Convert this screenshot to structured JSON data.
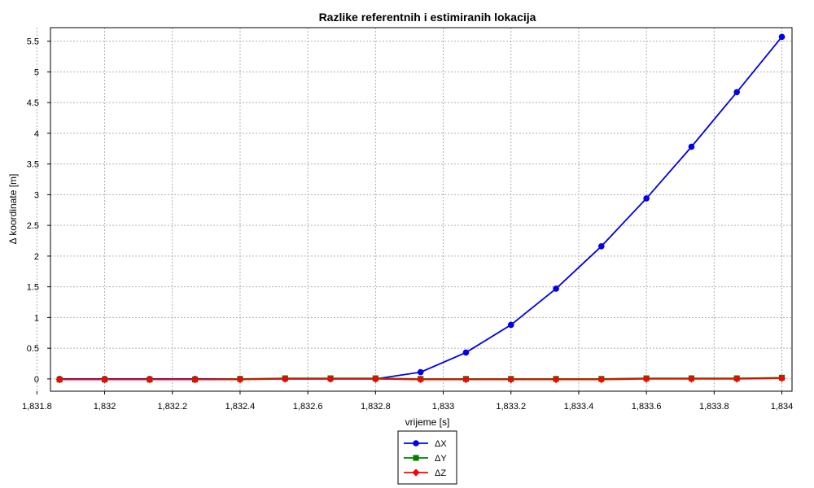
{
  "chart_data": {
    "type": "line",
    "title": "Razlike referentnih i estimiranih lokacija",
    "xlabel": "vrijeme [s]",
    "ylabel": "Δ koordinate [m]",
    "xlim": [
      1831.84,
      1834.03
    ],
    "ylim": [
      -0.2,
      5.72
    ],
    "x_ticks": [
      {
        "value": 1831.8,
        "label": "1,831.8"
      },
      {
        "value": 1832.0,
        "label": "1,832"
      },
      {
        "value": 1832.2,
        "label": "1,832.2"
      },
      {
        "value": 1832.4,
        "label": "1,832.4"
      },
      {
        "value": 1832.6,
        "label": "1,832.6"
      },
      {
        "value": 1832.8,
        "label": "1,832.8"
      },
      {
        "value": 1833.0,
        "label": "1,833"
      },
      {
        "value": 1833.2,
        "label": "1,833.2"
      },
      {
        "value": 1833.4,
        "label": "1,833.4"
      },
      {
        "value": 1833.6,
        "label": "1,833.6"
      },
      {
        "value": 1833.8,
        "label": "1,833.8"
      },
      {
        "value": 1834.0,
        "label": "1,834"
      }
    ],
    "y_ticks": [
      {
        "value": 0,
        "label": "0"
      },
      {
        "value": 0.5,
        "label": "0.5"
      },
      {
        "value": 1,
        "label": "1"
      },
      {
        "value": 1.5,
        "label": "1.5"
      },
      {
        "value": 2,
        "label": "2"
      },
      {
        "value": 2.5,
        "label": "2.5"
      },
      {
        "value": 3,
        "label": "3"
      },
      {
        "value": 3.5,
        "label": "3.5"
      },
      {
        "value": 4,
        "label": "4"
      },
      {
        "value": 4.5,
        "label": "4.5"
      },
      {
        "value": 5,
        "label": "5"
      },
      {
        "value": 5.5,
        "label": "5.5"
      }
    ],
    "grid": true,
    "legend_position": "bottom-center",
    "x": [
      1831.867,
      1832.0,
      1832.133,
      1832.267,
      1832.4,
      1832.533,
      1832.667,
      1832.8,
      1832.933,
      1833.067,
      1833.2,
      1833.333,
      1833.467,
      1833.6,
      1833.733,
      1833.867,
      1834.0
    ],
    "series": [
      {
        "name": "ΔX",
        "color": "#0000ee",
        "marker": "circle",
        "values": [
          0.0,
          0.0,
          0.0,
          0.0,
          0.0,
          0.0,
          0.0,
          0.0,
          0.11,
          0.43,
          0.88,
          1.47,
          2.16,
          2.94,
          3.78,
          4.67,
          5.57
        ]
      },
      {
        "name": "ΔY",
        "color": "#008000",
        "marker": "square",
        "values": [
          -0.01,
          -0.01,
          -0.01,
          -0.01,
          0.0,
          0.01,
          0.01,
          0.01,
          0.0,
          0.0,
          0.0,
          0.0,
          0.0,
          0.01,
          0.01,
          0.01,
          0.02
        ]
      },
      {
        "name": "ΔZ",
        "color": "#ff0000",
        "marker": "diamond",
        "values": [
          -0.01,
          -0.01,
          -0.01,
          -0.01,
          -0.01,
          0.0,
          0.0,
          0.0,
          -0.01,
          -0.01,
          -0.01,
          -0.01,
          -0.01,
          0.0,
          0.0,
          0.0,
          0.01
        ]
      }
    ]
  }
}
